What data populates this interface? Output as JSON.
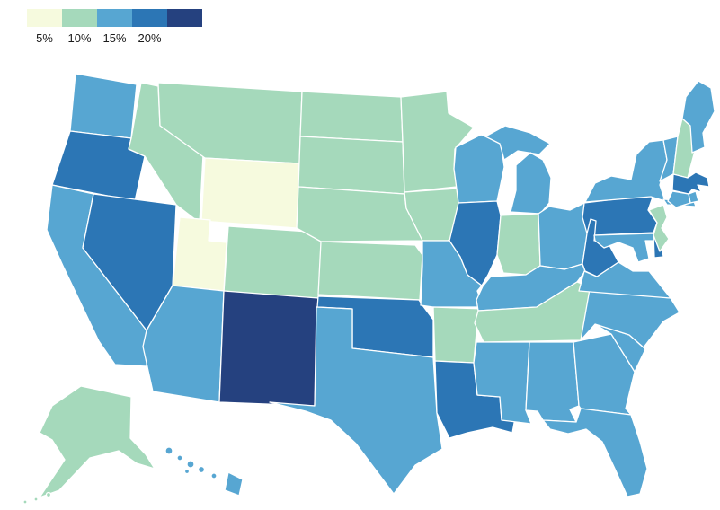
{
  "legend": {
    "tick_labels": [
      "5%",
      "10%",
      "15%",
      "20%"
    ],
    "colors": [
      "#f6fade",
      "#a5d9bb",
      "#57a6d2",
      "#2c76b5",
      "#25417f"
    ]
  },
  "map": {
    "states": [
      {
        "id": "WA",
        "name": "Washington",
        "bin": 2
      },
      {
        "id": "OR",
        "name": "Oregon",
        "bin": 3
      },
      {
        "id": "CA",
        "name": "California",
        "bin": 2
      },
      {
        "id": "NV",
        "name": "Nevada",
        "bin": 3
      },
      {
        "id": "ID",
        "name": "Idaho",
        "bin": 1
      },
      {
        "id": "MT",
        "name": "Montana",
        "bin": 1
      },
      {
        "id": "WY",
        "name": "Wyoming",
        "bin": 0
      },
      {
        "id": "UT",
        "name": "Utah",
        "bin": 0
      },
      {
        "id": "CO",
        "name": "Colorado",
        "bin": 1
      },
      {
        "id": "AZ",
        "name": "Arizona",
        "bin": 2
      },
      {
        "id": "NM",
        "name": "New Mexico",
        "bin": 4
      },
      {
        "id": "ND",
        "name": "North Dakota",
        "bin": 1
      },
      {
        "id": "SD",
        "name": "South Dakota",
        "bin": 1
      },
      {
        "id": "NE",
        "name": "Nebraska",
        "bin": 1
      },
      {
        "id": "KS",
        "name": "Kansas",
        "bin": 1
      },
      {
        "id": "OK",
        "name": "Oklahoma",
        "bin": 3
      },
      {
        "id": "TX",
        "name": "Texas",
        "bin": 2
      },
      {
        "id": "MN",
        "name": "Minnesota",
        "bin": 1
      },
      {
        "id": "IA",
        "name": "Iowa",
        "bin": 1
      },
      {
        "id": "MO",
        "name": "Missouri",
        "bin": 2
      },
      {
        "id": "AR",
        "name": "Arkansas",
        "bin": 1
      },
      {
        "id": "LA",
        "name": "Louisiana",
        "bin": 3
      },
      {
        "id": "WI",
        "name": "Wisconsin",
        "bin": 2
      },
      {
        "id": "IL",
        "name": "Illinois",
        "bin": 3
      },
      {
        "id": "MI",
        "name": "Michigan",
        "bin": 2
      },
      {
        "id": "IN",
        "name": "Indiana",
        "bin": 1
      },
      {
        "id": "OH",
        "name": "Ohio",
        "bin": 2
      },
      {
        "id": "KY",
        "name": "Kentucky",
        "bin": 2
      },
      {
        "id": "TN",
        "name": "Tennessee",
        "bin": 1
      },
      {
        "id": "MS",
        "name": "Mississippi",
        "bin": 2
      },
      {
        "id": "AL",
        "name": "Alabama",
        "bin": 2
      },
      {
        "id": "GA",
        "name": "Georgia",
        "bin": 2
      },
      {
        "id": "FL",
        "name": "Florida",
        "bin": 2
      },
      {
        "id": "SC",
        "name": "South Carolina",
        "bin": 2
      },
      {
        "id": "NC",
        "name": "North Carolina",
        "bin": 2
      },
      {
        "id": "VA",
        "name": "Virginia",
        "bin": 2
      },
      {
        "id": "WV",
        "name": "West Virginia",
        "bin": 3
      },
      {
        "id": "PA",
        "name": "Pennsylvania",
        "bin": 3
      },
      {
        "id": "NY",
        "name": "New York",
        "bin": 2
      },
      {
        "id": "NJ",
        "name": "New Jersey",
        "bin": 1
      },
      {
        "id": "DE",
        "name": "Delaware",
        "bin": 3
      },
      {
        "id": "MD",
        "name": "Maryland",
        "bin": 2
      },
      {
        "id": "VT",
        "name": "Vermont",
        "bin": 2
      },
      {
        "id": "NH",
        "name": "New Hampshire",
        "bin": 1
      },
      {
        "id": "ME",
        "name": "Maine",
        "bin": 2
      },
      {
        "id": "MA",
        "name": "Massachusetts",
        "bin": 3
      },
      {
        "id": "RI",
        "name": "Rhode Island",
        "bin": 2
      },
      {
        "id": "CT",
        "name": "Connecticut",
        "bin": 2
      },
      {
        "id": "AK",
        "name": "Alaska",
        "bin": 1
      },
      {
        "id": "HI",
        "name": "Hawaii",
        "bin": 2
      }
    ]
  }
}
